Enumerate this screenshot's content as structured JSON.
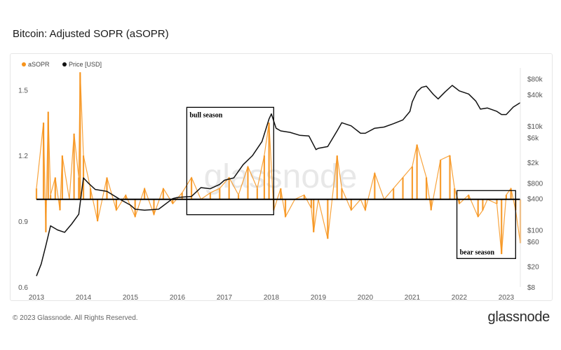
{
  "header": {
    "title": "Bitcoin: Adjusted SOPR (aSOPR)"
  },
  "footer": {
    "copyright": "© 2023 Glassnode. All Rights Reserved.",
    "brand": "glassnode"
  },
  "watermark": "glassnode",
  "chart_data": {
    "type": "line",
    "title": "Bitcoin: Adjusted SOPR (aSOPR)",
    "legend_placement": "top-left",
    "grid": false,
    "x_ticks": [
      "2013",
      "2014",
      "2015",
      "2016",
      "2017",
      "2018",
      "2019",
      "2020",
      "2021",
      "2022",
      "2023"
    ],
    "x_range": [
      2013.0,
      2023.3
    ],
    "y_left": {
      "scale": "linear",
      "range": [
        0.6,
        1.6
      ],
      "ticks": [
        "0.6",
        "0.9",
        "1.2",
        "1.5"
      ]
    },
    "y_right": {
      "scale": "log",
      "range": [
        8,
        130000
      ],
      "ticks": [
        "$8",
        "$20",
        "$60",
        "$100",
        "$400",
        "$800",
        "$2k",
        "$6k",
        "$10k",
        "$40k",
        "$80k"
      ],
      "tick_values": [
        8,
        20,
        60,
        100,
        400,
        800,
        2000,
        6000,
        10000,
        40000,
        80000
      ]
    },
    "reference_line": {
      "axis": "left",
      "value": 1.0,
      "color": "#000000"
    },
    "series": [
      {
        "name": "aSOPR",
        "axis": "left",
        "color": "#f7931a",
        "x": [
          2013.0,
          2013.15,
          2013.2,
          2013.25,
          2013.3,
          2013.4,
          2013.5,
          2013.55,
          2013.7,
          2013.8,
          2013.9,
          2013.93,
          2014.0,
          2014.15,
          2014.3,
          2014.5,
          2014.7,
          2014.9,
          2015.1,
          2015.3,
          2015.5,
          2015.7,
          2015.9,
          2016.1,
          2016.3,
          2016.5,
          2016.7,
          2016.9,
          2017.1,
          2017.3,
          2017.5,
          2017.7,
          2017.85,
          2017.95,
          2018.05,
          2018.2,
          2018.3,
          2018.5,
          2018.7,
          2018.85,
          2018.9,
          2019.0,
          2019.2,
          2019.4,
          2019.5,
          2019.7,
          2019.9,
          2020.0,
          2020.2,
          2020.4,
          2020.6,
          2020.8,
          2021.0,
          2021.1,
          2021.3,
          2021.4,
          2021.6,
          2021.8,
          2021.9,
          2022.0,
          2022.2,
          2022.4,
          2022.5,
          2022.6,
          2022.8,
          2022.9,
          2023.0,
          2023.1,
          2023.2,
          2023.3
        ],
        "y": [
          1.05,
          1.35,
          0.85,
          1.4,
          1.02,
          1.1,
          0.95,
          1.2,
          1.0,
          1.3,
          1.1,
          1.58,
          1.2,
          1.05,
          0.9,
          1.1,
          0.95,
          1.02,
          0.92,
          1.05,
          0.93,
          1.05,
          0.98,
          1.03,
          1.1,
          1.0,
          1.03,
          1.05,
          1.1,
          1.02,
          1.15,
          1.05,
          1.2,
          1.35,
          0.95,
          1.05,
          0.92,
          1.0,
          1.02,
          0.96,
          0.85,
          1.0,
          0.82,
          1.2,
          1.05,
          0.95,
          1.0,
          0.95,
          1.12,
          1.0,
          1.05,
          1.1,
          1.15,
          1.25,
          1.1,
          0.95,
          1.18,
          1.2,
          1.05,
          0.98,
          1.02,
          0.92,
          0.95,
          1.0,
          0.98,
          0.75,
          1.02,
          1.05,
          0.95,
          0.8
        ]
      },
      {
        "name": "Price [USD]",
        "axis": "right",
        "color": "#111111",
        "x": [
          2013.0,
          2013.1,
          2013.2,
          2013.3,
          2013.45,
          2013.6,
          2013.75,
          2013.9,
          2014.0,
          2014.1,
          2014.25,
          2014.5,
          2014.75,
          2015.0,
          2015.1,
          2015.3,
          2015.6,
          2015.9,
          2016.0,
          2016.3,
          2016.5,
          2016.7,
          2016.9,
          2017.0,
          2017.2,
          2017.4,
          2017.6,
          2017.8,
          2017.95,
          2018.0,
          2018.1,
          2018.2,
          2018.4,
          2018.6,
          2018.8,
          2018.95,
          2019.0,
          2019.2,
          2019.4,
          2019.5,
          2019.7,
          2019.9,
          2020.0,
          2020.2,
          2020.4,
          2020.6,
          2020.8,
          2020.95,
          2021.0,
          2021.1,
          2021.2,
          2021.3,
          2021.45,
          2021.55,
          2021.7,
          2021.85,
          2022.0,
          2022.2,
          2022.35,
          2022.45,
          2022.6,
          2022.8,
          2022.9,
          2023.0,
          2023.15,
          2023.3
        ],
        "y": [
          13,
          22,
          50,
          120,
          100,
          90,
          130,
          200,
          1000,
          800,
          600,
          550,
          400,
          300,
          250,
          240,
          250,
          400,
          420,
          440,
          650,
          620,
          750,
          900,
          1000,
          1800,
          2700,
          5000,
          13500,
          17000,
          9000,
          8000,
          7500,
          6600,
          6400,
          3500,
          3700,
          4000,
          8000,
          11500,
          10000,
          7200,
          7200,
          9000,
          9500,
          11000,
          13000,
          19000,
          29000,
          45000,
          55000,
          58000,
          40000,
          33000,
          45000,
          60000,
          47000,
          41000,
          30000,
          21000,
          22000,
          19000,
          16500,
          16500,
          23000,
          28000
        ]
      }
    ],
    "annotations": [
      {
        "text": "bull season",
        "x_range": [
          2016.2,
          2018.05
        ],
        "y_range": [
          0.93,
          1.42
        ]
      },
      {
        "text": "bear season",
        "x_range": [
          2021.95,
          2023.2
        ],
        "y_range": [
          0.73,
          1.04
        ]
      }
    ]
  }
}
